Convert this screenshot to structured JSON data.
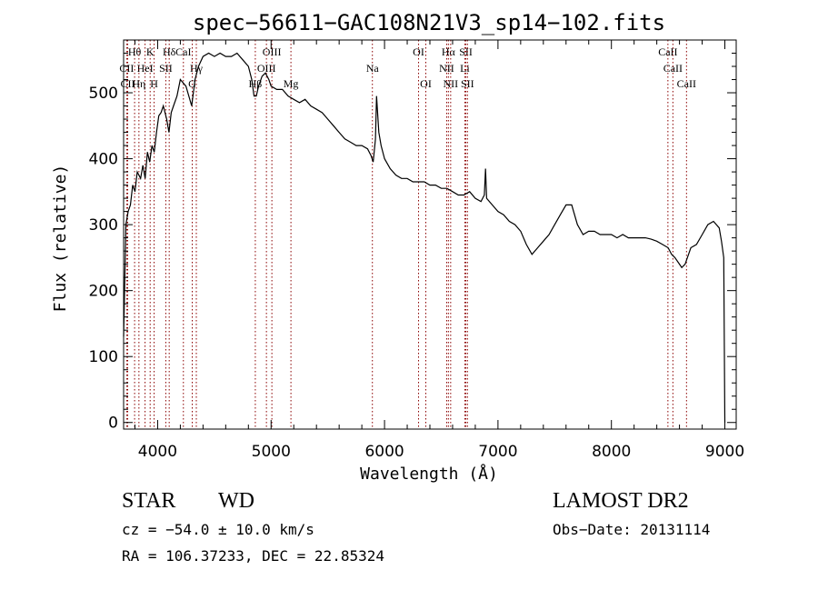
{
  "footer": {
    "star_label": "STAR",
    "class_label": "WD",
    "survey": "LAMOST DR2",
    "cz_text": "cz = −54.0 ± 10.0 km/s",
    "obs_date": "Obs−Date: 20131114",
    "radec_text": "RA = 106.37233, DEC =  22.85324"
  },
  "chart_data": {
    "type": "line",
    "title": "spec−56611−GAC108N21V3_sp14−102.fits",
    "xlabel": "Wavelength (Å)",
    "ylabel": "Flux (relative)",
    "xlim": [
      3700,
      9100
    ],
    "ylim": [
      -10,
      580
    ],
    "x_ticks": [
      4000,
      5000,
      6000,
      7000,
      8000,
      9000
    ],
    "y_ticks": [
      0,
      100,
      200,
      300,
      400,
      500
    ],
    "grid": false,
    "line_color": "#000000",
    "marker_color": "#8b0000",
    "spectrum": [
      [
        3700,
        130
      ],
      [
        3720,
        300
      ],
      [
        3740,
        320
      ],
      [
        3760,
        330
      ],
      [
        3780,
        360
      ],
      [
        3800,
        350
      ],
      [
        3820,
        380
      ],
      [
        3850,
        370
      ],
      [
        3870,
        390
      ],
      [
        3890,
        370
      ],
      [
        3910,
        410
      ],
      [
        3930,
        395
      ],
      [
        3950,
        420
      ],
      [
        3970,
        410
      ],
      [
        3990,
        440
      ],
      [
        4010,
        465
      ],
      [
        4030,
        470
      ],
      [
        4050,
        480
      ],
      [
        4080,
        460
      ],
      [
        4100,
        440
      ],
      [
        4120,
        470
      ],
      [
        4140,
        480
      ],
      [
        4170,
        495
      ],
      [
        4200,
        520
      ],
      [
        4250,
        510
      ],
      [
        4300,
        480
      ],
      [
        4330,
        520
      ],
      [
        4360,
        540
      ],
      [
        4400,
        555
      ],
      [
        4450,
        560
      ],
      [
        4500,
        555
      ],
      [
        4550,
        560
      ],
      [
        4600,
        555
      ],
      [
        4650,
        555
      ],
      [
        4700,
        560
      ],
      [
        4750,
        550
      ],
      [
        4800,
        540
      ],
      [
        4830,
        520
      ],
      [
        4850,
        495
      ],
      [
        4870,
        495
      ],
      [
        4890,
        510
      ],
      [
        4920,
        525
      ],
      [
        4950,
        530
      ],
      [
        4980,
        520
      ],
      [
        5000,
        510
      ],
      [
        5050,
        505
      ],
      [
        5100,
        505
      ],
      [
        5150,
        495
      ],
      [
        5200,
        490
      ],
      [
        5250,
        485
      ],
      [
        5300,
        490
      ],
      [
        5350,
        480
      ],
      [
        5400,
        475
      ],
      [
        5450,
        470
      ],
      [
        5500,
        460
      ],
      [
        5550,
        450
      ],
      [
        5600,
        440
      ],
      [
        5650,
        430
      ],
      [
        5700,
        425
      ],
      [
        5750,
        420
      ],
      [
        5800,
        420
      ],
      [
        5850,
        415
      ],
      [
        5880,
        405
      ],
      [
        5900,
        395
      ],
      [
        5920,
        430
      ],
      [
        5930,
        495
      ],
      [
        5950,
        440
      ],
      [
        5970,
        420
      ],
      [
        6000,
        400
      ],
      [
        6050,
        385
      ],
      [
        6100,
        375
      ],
      [
        6150,
        370
      ],
      [
        6200,
        370
      ],
      [
        6250,
        365
      ],
      [
        6300,
        365
      ],
      [
        6350,
        365
      ],
      [
        6400,
        360
      ],
      [
        6450,
        360
      ],
      [
        6500,
        355
      ],
      [
        6550,
        355
      ],
      [
        6600,
        350
      ],
      [
        6650,
        345
      ],
      [
        6700,
        345
      ],
      [
        6750,
        350
      ],
      [
        6800,
        340
      ],
      [
        6850,
        335
      ],
      [
        6880,
        345
      ],
      [
        6890,
        385
      ],
      [
        6900,
        340
      ],
      [
        6950,
        330
      ],
      [
        7000,
        320
      ],
      [
        7050,
        315
      ],
      [
        7100,
        305
      ],
      [
        7150,
        300
      ],
      [
        7200,
        290
      ],
      [
        7250,
        270
      ],
      [
        7300,
        255
      ],
      [
        7350,
        265
      ],
      [
        7400,
        275
      ],
      [
        7450,
        285
      ],
      [
        7500,
        300
      ],
      [
        7550,
        315
      ],
      [
        7600,
        330
      ],
      [
        7650,
        330
      ],
      [
        7700,
        300
      ],
      [
        7750,
        285
      ],
      [
        7800,
        290
      ],
      [
        7850,
        290
      ],
      [
        7900,
        285
      ],
      [
        7950,
        285
      ],
      [
        8000,
        285
      ],
      [
        8050,
        280
      ],
      [
        8100,
        285
      ],
      [
        8150,
        280
      ],
      [
        8200,
        280
      ],
      [
        8250,
        280
      ],
      [
        8300,
        280
      ],
      [
        8350,
        278
      ],
      [
        8400,
        275
      ],
      [
        8450,
        270
      ],
      [
        8500,
        265
      ],
      [
        8530,
        255
      ],
      [
        8560,
        250
      ],
      [
        8600,
        240
      ],
      [
        8620,
        235
      ],
      [
        8650,
        240
      ],
      [
        8700,
        265
      ],
      [
        8750,
        270
      ],
      [
        8800,
        285
      ],
      [
        8850,
        300
      ],
      [
        8900,
        305
      ],
      [
        8950,
        295
      ],
      [
        8970,
        275
      ],
      [
        8990,
        250
      ],
      [
        9000,
        0
      ]
    ],
    "line_markers": [
      {
        "label": "Hθ",
        "wavelength": 3797,
        "row": 0
      },
      {
        "label": "K",
        "wavelength": 3934,
        "row": 0
      },
      {
        "label": "Hδ",
        "wavelength": 4102,
        "row": 0
      },
      {
        "label": "CaI",
        "wavelength": 4227,
        "row": 0
      },
      {
        "label": "OIII",
        "wavelength": 5007,
        "row": 0
      },
      {
        "label": "OI",
        "wavelength": 6300,
        "row": 0
      },
      {
        "label": "Hα",
        "wavelength": 6563,
        "row": 0
      },
      {
        "label": "SII",
        "wavelength": 6717,
        "row": 0
      },
      {
        "label": "CaII",
        "wavelength": 8498,
        "row": 0
      },
      {
        "label": "CII",
        "wavelength": 3727,
        "row": 1
      },
      {
        "label": "HeI",
        "wavelength": 3889,
        "row": 1
      },
      {
        "label": "SII",
        "wavelength": 4072,
        "row": 1
      },
      {
        "label": "Hγ",
        "wavelength": 4341,
        "row": 1
      },
      {
        "label": "OIII",
        "wavelength": 4959,
        "row": 1
      },
      {
        "label": "Na",
        "wavelength": 5893,
        "row": 1
      },
      {
        "label": "NII",
        "wavelength": 6548,
        "row": 1
      },
      {
        "label": "Li",
        "wavelength": 6708,
        "row": 1
      },
      {
        "label": "CaII",
        "wavelength": 8542,
        "row": 1
      },
      {
        "label": "CII",
        "wavelength": 3736,
        "row": 2
      },
      {
        "label": "Hη",
        "wavelength": 3835,
        "row": 2
      },
      {
        "label": "H",
        "wavelength": 3969,
        "row": 2
      },
      {
        "label": "G",
        "wavelength": 4305,
        "row": 2
      },
      {
        "label": "Hβ",
        "wavelength": 4861,
        "row": 2
      },
      {
        "label": "Mg",
        "wavelength": 5175,
        "row": 2
      },
      {
        "label": "OI",
        "wavelength": 6364,
        "row": 2
      },
      {
        "label": "NII",
        "wavelength": 6583,
        "row": 2
      },
      {
        "label": "SII",
        "wavelength": 6731,
        "row": 2
      },
      {
        "label": "CaII",
        "wavelength": 8662,
        "row": 2
      }
    ]
  }
}
